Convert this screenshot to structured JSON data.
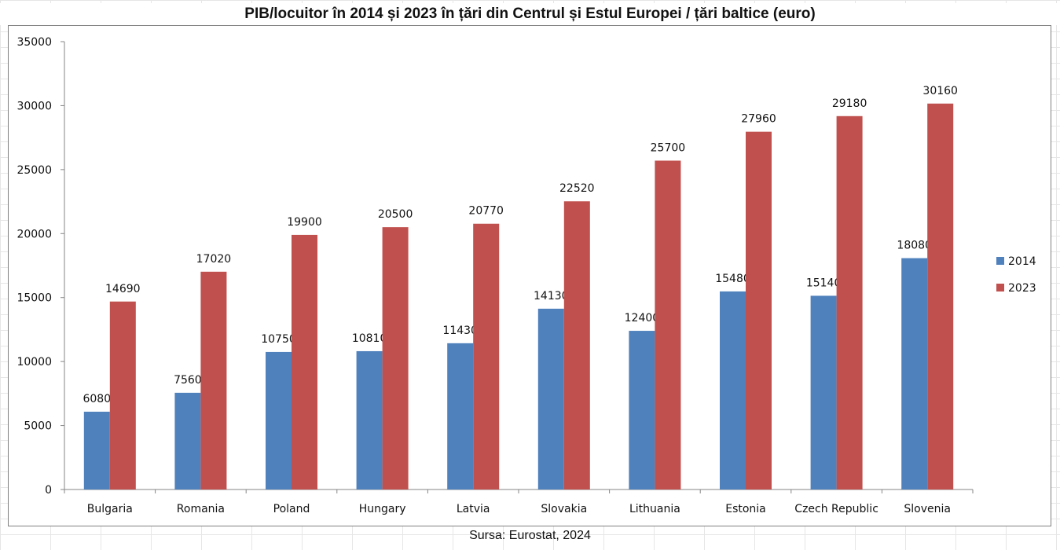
{
  "title": "PIB/locuitor în 2014 și 2023 în țări din Centrul și Estul Europei / țări baltice (euro)",
  "source": "Sursa: Eurostat, 2024",
  "colors": {
    "series_2014": "#4f81bd",
    "series_2023": "#c0504d"
  },
  "chart_data": {
    "type": "bar",
    "title": "PIB/locuitor în 2014 și 2023 în țări din Centrul și Estul Europei / țări baltice (euro)",
    "xlabel": "",
    "ylabel": "",
    "ylim": [
      0,
      35000
    ],
    "yticks": [
      "0",
      "5000",
      "10000",
      "15000",
      "20000",
      "25000",
      "30000",
      "35000"
    ],
    "grid": false,
    "legend_position": "right",
    "categories": [
      "Bulgaria",
      "Romania",
      "Poland",
      "Hungary",
      "Latvia",
      "Slovakia",
      "Lithuania",
      "Estonia",
      "Czech Republic",
      "Slovenia"
    ],
    "series": [
      {
        "name": "2014",
        "color": "#4f81bd",
        "values": [
          6080,
          7560,
          10750,
          10810,
          11430,
          14130,
          12400,
          15480,
          15140,
          18080
        ]
      },
      {
        "name": "2023",
        "color": "#c0504d",
        "values": [
          14690,
          17020,
          19900,
          20500,
          20770,
          22520,
          25700,
          27960,
          29180,
          30160
        ]
      }
    ]
  }
}
